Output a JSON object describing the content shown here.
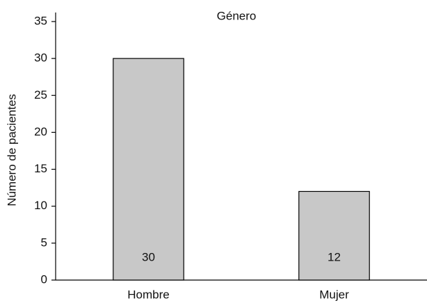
{
  "chart_data": {
    "type": "bar",
    "title": "Género",
    "y_label": "Número de pacientes",
    "categories": [
      "Hombre",
      "Mujer"
    ],
    "values": [
      30,
      12
    ],
    "color": "#c8c8c8",
    "ylim": [
      0,
      35
    ],
    "yticks": [
      0,
      5,
      10,
      15,
      20,
      25,
      30,
      35
    ],
    "grid": false
  }
}
